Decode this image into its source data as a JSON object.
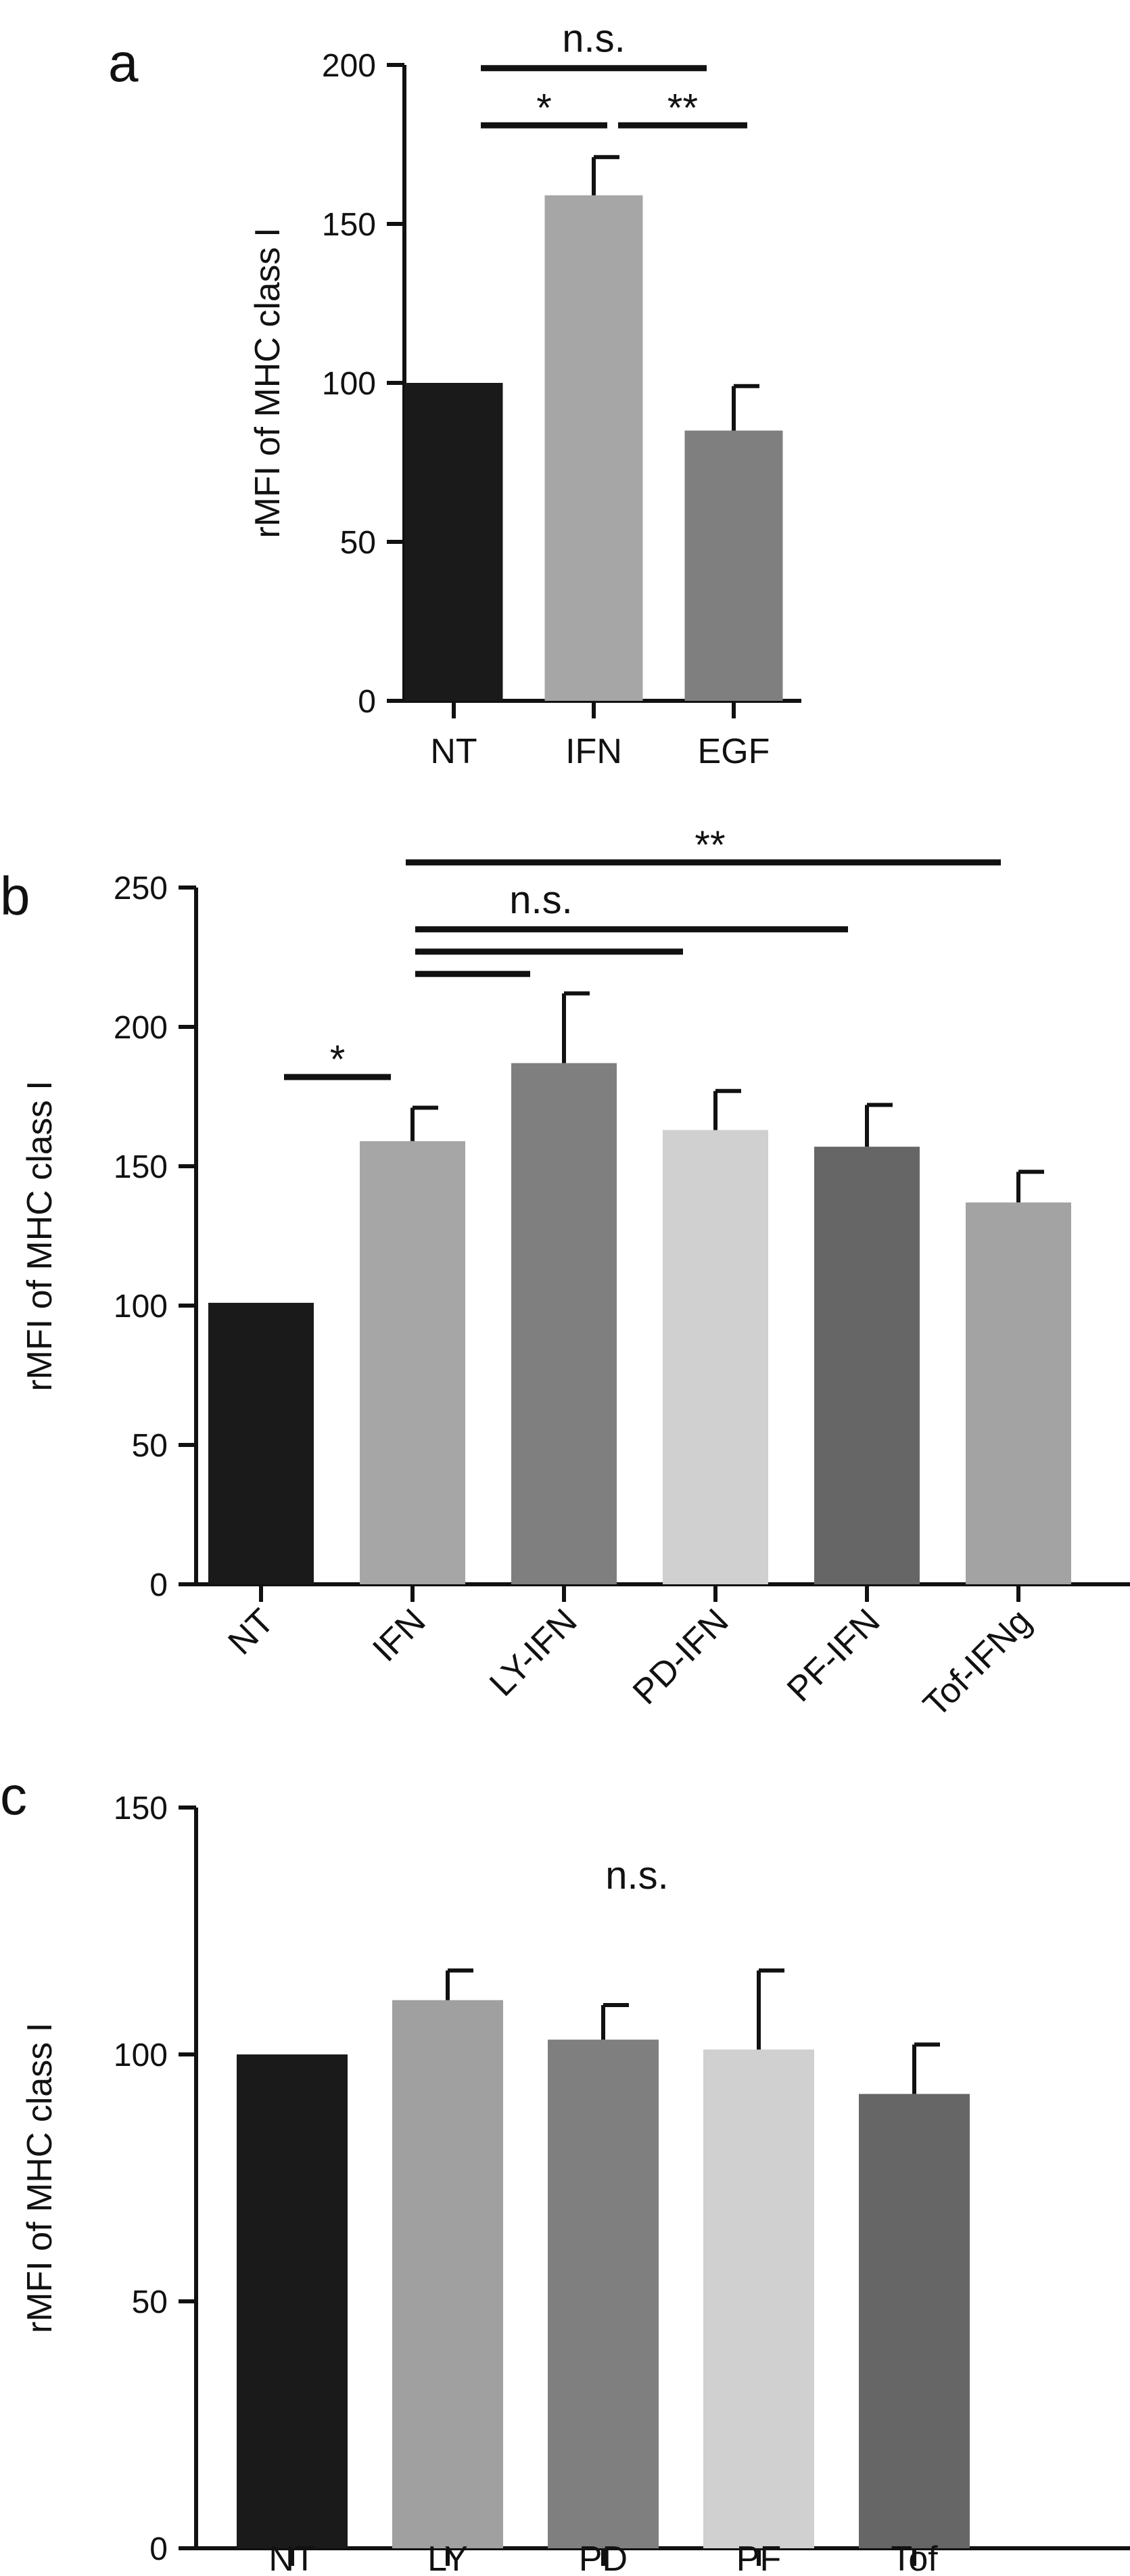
{
  "chart_data": [
    {
      "panel": "a",
      "type": "bar",
      "ylabel": "rMFI of MHC class I",
      "ylim": [
        0,
        200
      ],
      "yticks": [
        0,
        50,
        100,
        150,
        200
      ],
      "categories": [
        "NT",
        "IFN",
        "EGF"
      ],
      "values": [
        100,
        159,
        85
      ],
      "errors": [
        0,
        12,
        14
      ],
      "colors": [
        "#1a1a1a",
        "#a6a6a6",
        "#7f7f7f"
      ],
      "significance": [
        {
          "from": 0,
          "to": 1,
          "label": "*",
          "y": 181
        },
        {
          "from": 1,
          "to": 2,
          "label": "**",
          "y": 181
        },
        {
          "from": 0,
          "to": 2,
          "label": "n.s.",
          "y": 199
        }
      ]
    },
    {
      "panel": "b",
      "type": "bar",
      "ylabel": "rMFI of MHC class I",
      "ylim": [
        0,
        250
      ],
      "yticks": [
        0,
        50,
        100,
        150,
        200,
        250
      ],
      "categories": [
        "NT",
        "IFN",
        "LY-IFN",
        "PD-IFN",
        "PF-IFN",
        "Tof-IFNg"
      ],
      "values": [
        101,
        159,
        187,
        163,
        157,
        137
      ],
      "errors": [
        0,
        12,
        25,
        14,
        15,
        11
      ],
      "colors": [
        "#1a1a1a",
        "#a6a6a6",
        "#7f7f7f",
        "#d0d0d0",
        "#666666",
        "#a3a3a3"
      ],
      "significance": [
        {
          "from": 0,
          "to": 1,
          "label": "*",
          "y": 182
        },
        {
          "from": 1,
          "to": 2,
          "label": "",
          "y": 219
        },
        {
          "from": 1,
          "to": 3,
          "label": "",
          "y": 227
        },
        {
          "from": 1,
          "to": 4,
          "label": "n.s.",
          "y": 235
        },
        {
          "from": 1,
          "to": 5,
          "label": "**",
          "y": 259
        }
      ]
    },
    {
      "panel": "c",
      "type": "bar",
      "ylabel": "rMFI of  MHC class I",
      "ylim": [
        0,
        150
      ],
      "yticks": [
        0,
        50,
        100,
        150
      ],
      "categories": [
        "NT",
        "LY",
        "PD",
        "PF",
        "Tof"
      ],
      "values": [
        100,
        111,
        103,
        101,
        92
      ],
      "errors": [
        0,
        6,
        7,
        16,
        10
      ],
      "colors": [
        "#1a1a1a",
        "#a0a0a0",
        "#7f7f7f",
        "#d0d0d0",
        "#666666"
      ],
      "annotations": [
        {
          "label": "n.s."
        }
      ]
    }
  ]
}
